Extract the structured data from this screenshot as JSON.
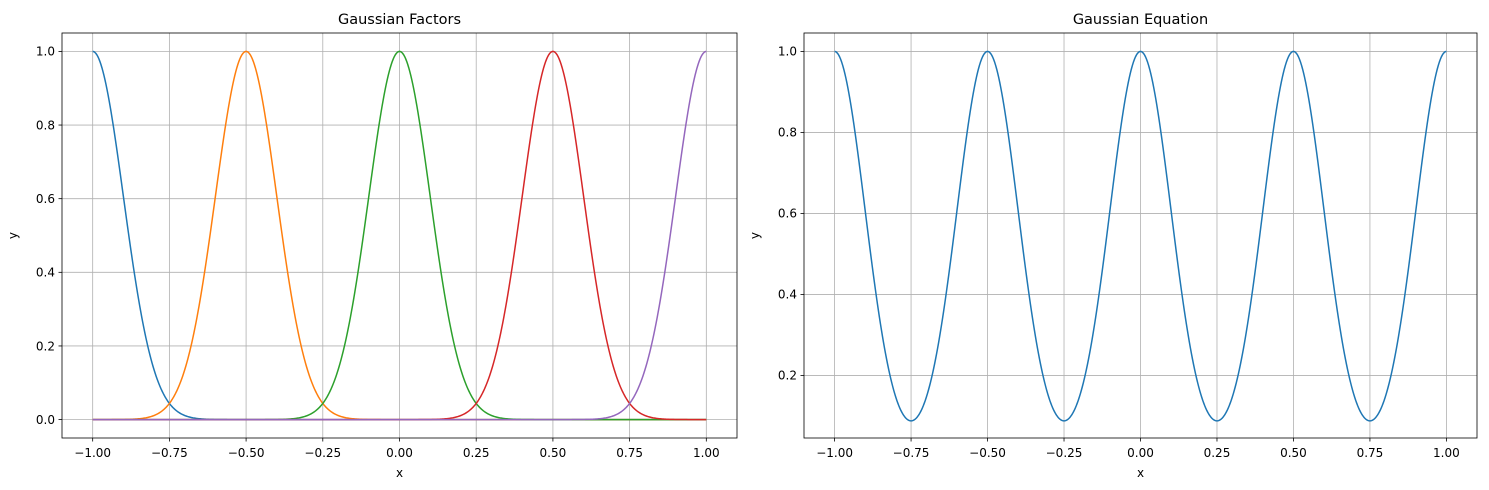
{
  "chart_data": [
    {
      "type": "line",
      "title": "Gaussian Factors",
      "xlabel": "x",
      "ylabel": "y",
      "xlim": [
        -1.1,
        1.1
      ],
      "ylim": [
        -0.05,
        1.05
      ],
      "xticks": [
        -1.0,
        -0.75,
        -0.5,
        -0.25,
        0.0,
        0.25,
        0.5,
        0.75,
        1.0
      ],
      "xtick_labels": [
        "−1.00",
        "−0.75",
        "−0.50",
        "−0.25",
        "0.00",
        "0.25",
        "0.50",
        "0.75",
        "1.00"
      ],
      "yticks": [
        0.0,
        0.2,
        0.4,
        0.6,
        0.8,
        1.0
      ],
      "ytick_labels": [
        "0.0",
        "0.2",
        "0.4",
        "0.6",
        "0.8",
        "1.0"
      ],
      "grid": true,
      "legend": false,
      "x_range": [
        -1.0,
        1.0
      ],
      "series": [
        {
          "color": "#1f77b4",
          "function": "exp(-(x-mu)^2/(2*sigma^2))",
          "mu": -1.0,
          "sigma": 0.1
        },
        {
          "color": "#ff7f0e",
          "function": "exp(-(x-mu)^2/(2*sigma^2))",
          "mu": -0.5,
          "sigma": 0.1
        },
        {
          "color": "#2ca02c",
          "function": "exp(-(x-mu)^2/(2*sigma^2))",
          "mu": 0.0,
          "sigma": 0.1
        },
        {
          "color": "#d62728",
          "function": "exp(-(x-mu)^2/(2*sigma^2))",
          "mu": 0.5,
          "sigma": 0.1
        },
        {
          "color": "#9467bd",
          "function": "exp(-(x-mu)^2/(2*sigma^2))",
          "mu": 1.0,
          "sigma": 0.1
        }
      ]
    },
    {
      "type": "line",
      "title": "Gaussian Equation",
      "xlabel": "x",
      "ylabel": "y",
      "xlim": [
        -1.1,
        1.1
      ],
      "ylim": [
        0.0455,
        1.0455
      ],
      "xticks": [
        -1.0,
        -0.75,
        -0.5,
        -0.25,
        0.0,
        0.25,
        0.5,
        0.75,
        1.0
      ],
      "xtick_labels": [
        "−1.00",
        "−0.75",
        "−0.50",
        "−0.25",
        "0.00",
        "0.25",
        "0.50",
        "0.75",
        "1.00"
      ],
      "yticks": [
        0.2,
        0.4,
        0.6,
        0.8,
        1.0
      ],
      "ytick_labels": [
        "0.2",
        "0.4",
        "0.6",
        "0.8",
        "1.0"
      ],
      "grid": true,
      "legend": false,
      "x_range": [
        -1.0,
        1.0
      ],
      "series": [
        {
          "color": "#1f77b4",
          "function": "sum of Gaussian factors",
          "mus": [
            -1.0,
            -0.5,
            0.0,
            0.5,
            1.0
          ],
          "sigma": 0.1
        }
      ]
    }
  ]
}
